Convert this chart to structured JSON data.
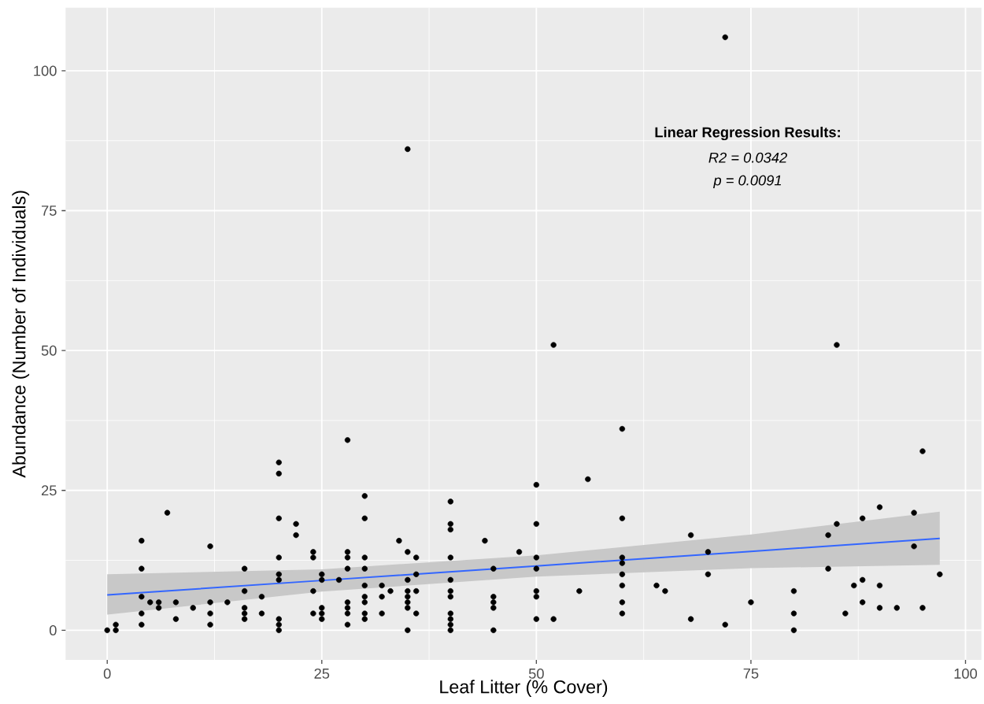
{
  "chart_data": {
    "type": "scatter",
    "xlabel": "Leaf Litter (% Cover)",
    "ylabel": "Abundance (Number of Individuals)",
    "annotations": [
      "Linear Regression Results:",
      "R2 = 0.0342",
      "p = 0.0091"
    ],
    "xlim": [
      -4.85,
      101.85
    ],
    "ylim": [
      -5.3,
      111.3
    ],
    "xticks": [
      0,
      25,
      50,
      75,
      100
    ],
    "yticks": [
      0,
      25,
      50,
      75,
      100
    ],
    "grid": true,
    "series": [
      {
        "color": "#000000",
        "marker": "circle",
        "x": [
          0,
          1,
          1,
          4,
          4,
          4,
          4,
          4,
          5,
          6,
          6,
          7,
          8,
          8,
          10,
          12,
          12,
          12,
          12,
          14,
          16,
          16,
          16,
          16,
          16,
          18,
          18,
          20,
          20,
          20,
          20,
          20,
          20,
          20,
          20,
          20,
          22,
          22,
          24,
          24,
          24,
          24,
          25,
          25,
          25,
          25,
          25,
          27,
          28,
          28,
          28,
          28,
          28,
          28,
          28,
          28,
          30,
          30,
          30,
          30,
          30,
          30,
          30,
          30,
          30,
          32,
          32,
          32,
          33,
          34,
          35,
          35,
          35,
          35,
          35,
          35,
          35,
          35,
          36,
          36,
          36,
          36,
          40,
          40,
          40,
          40,
          40,
          40,
          40,
          40,
          40,
          40,
          40,
          44,
          45,
          45,
          45,
          45,
          45,
          48,
          50,
          50,
          50,
          50,
          50,
          50,
          50,
          52,
          52,
          55,
          56,
          60,
          60,
          60,
          60,
          60,
          60,
          60,
          60,
          64,
          65,
          68,
          68,
          70,
          70,
          72,
          72,
          75,
          80,
          80,
          80,
          84,
          84,
          85,
          85,
          86,
          87,
          88,
          88,
          88,
          90,
          90,
          90,
          92,
          94,
          94,
          95,
          95,
          97
        ],
        "values": [
          0,
          1,
          0,
          16,
          11,
          6,
          3,
          1,
          5,
          5,
          4,
          21,
          5,
          2,
          4,
          15,
          5,
          3,
          1,
          5,
          11,
          7,
          4,
          3,
          2,
          6,
          3,
          30,
          28,
          20,
          13,
          10,
          9,
          2,
          1,
          0,
          19,
          17,
          14,
          13,
          7,
          3,
          10,
          9,
          4,
          3,
          2,
          9,
          34,
          14,
          13,
          11,
          5,
          4,
          3,
          1,
          24,
          20,
          13,
          11,
          8,
          6,
          5,
          3,
          2,
          8,
          6,
          3,
          7,
          16,
          86,
          14,
          9,
          7,
          6,
          5,
          4,
          0,
          13,
          10,
          7,
          3,
          23,
          19,
          18,
          13,
          9,
          7,
          6,
          3,
          2,
          1,
          0,
          16,
          11,
          6,
          5,
          4,
          0,
          14,
          26,
          19,
          13,
          11,
          7,
          6,
          2,
          51,
          2,
          7,
          27,
          36,
          20,
          13,
          12,
          10,
          8,
          5,
          3,
          8,
          7,
          17,
          2,
          14,
          10,
          106,
          1,
          5,
          7,
          3,
          0,
          17,
          11,
          51,
          19,
          3,
          8,
          20,
          9,
          5,
          22,
          8,
          4,
          4,
          21,
          15,
          32,
          4,
          10
        ]
      },
      {
        "type": "line",
        "marker": "none",
        "color": "#3366ff",
        "x": [
          0,
          25,
          50,
          75,
          97
        ],
        "values": [
          6.3,
          8.9,
          11.5,
          14.1,
          16.4
        ],
        "lower": [
          2.8,
          6.9,
          9.6,
          11.1,
          11.7
        ],
        "upper": [
          10.0,
          10.9,
          13.4,
          17.1,
          21.2
        ]
      }
    ]
  }
}
